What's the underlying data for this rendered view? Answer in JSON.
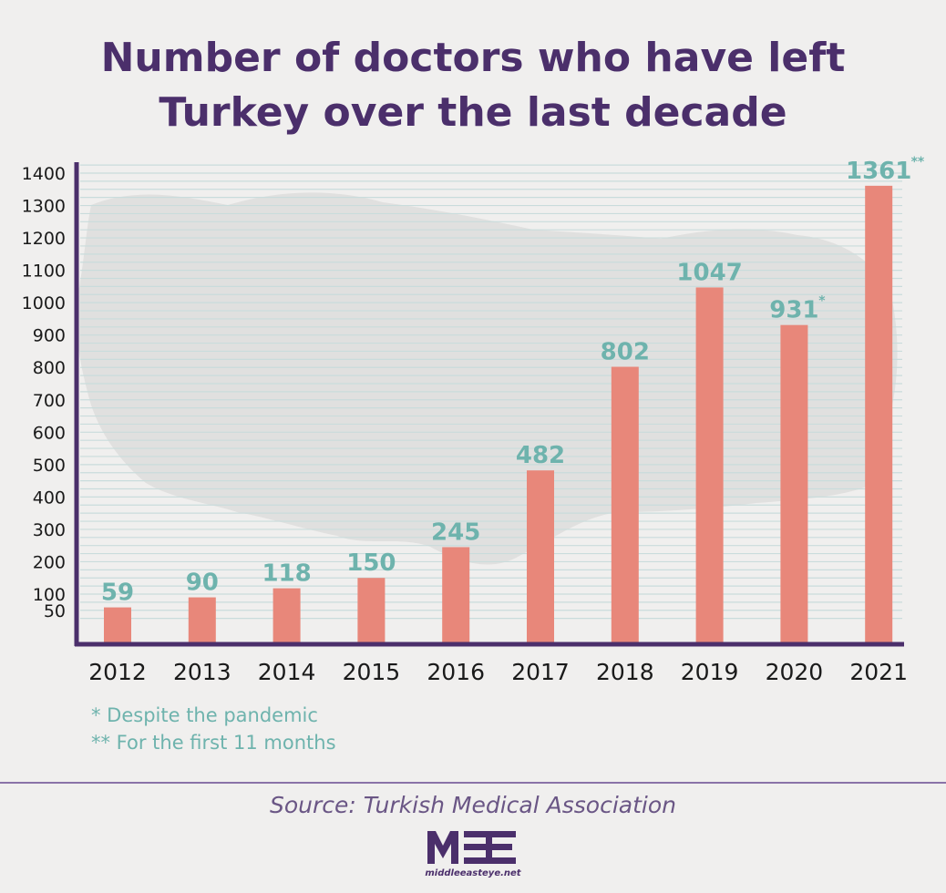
{
  "title_lines": [
    "Number of doctors who have left",
    "Turkey over the last decade"
  ],
  "notes": [
    "* Despite the pandemic",
    "** For the first 11 months"
  ],
  "source": "Source: Turkish Medical Association",
  "logo": {
    "text": "MEE",
    "url": "middleeasteye.net"
  },
  "colors": {
    "title": "#4b2f6b",
    "axis": "#4b2f6b",
    "bar": "#e8877a",
    "label": "#6eb3ad",
    "grid": "#c9dcdc",
    "map": "#e0e0df"
  },
  "chart_data": {
    "type": "bar",
    "categories": [
      "2012",
      "2013",
      "2014",
      "2015",
      "2016",
      "2017",
      "2018",
      "2019",
      "2020",
      "2021"
    ],
    "values": [
      59,
      90,
      118,
      150,
      245,
      482,
      802,
      1047,
      931,
      1361
    ],
    "value_labels": [
      "59",
      "90",
      "118",
      "150",
      "245",
      "482",
      "802",
      "1047",
      "931",
      "1361"
    ],
    "value_label_marks": [
      "",
      "",
      "",
      "",
      "",
      "",
      "",
      "",
      "*",
      "**"
    ],
    "y_ticks": [
      50,
      100,
      200,
      300,
      400,
      500,
      600,
      700,
      800,
      900,
      1000,
      1100,
      1200,
      1300,
      1400
    ],
    "ylim": [
      0,
      1450
    ],
    "grid": true,
    "title": "Number of doctors who have left Turkey over the last decade",
    "xlabel": "",
    "ylabel": ""
  }
}
